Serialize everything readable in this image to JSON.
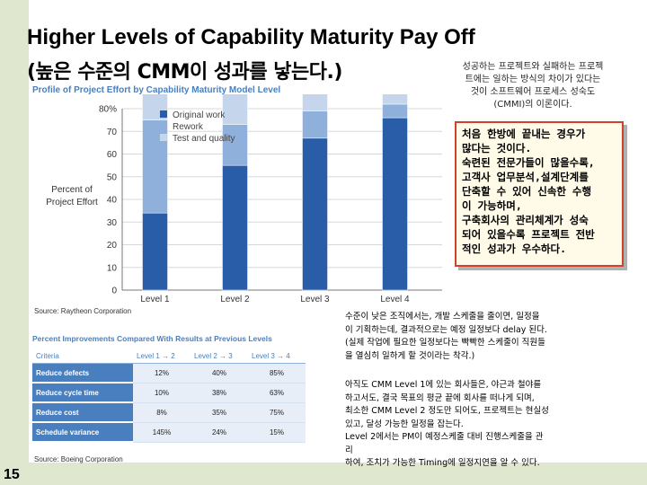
{
  "slide": {
    "title_line1": "Higher Levels of Capability Maturity Pay Off",
    "title_line2": "(높은 수준의 CMM이 성과를 낳는다.)",
    "page_number": "15",
    "note_top": [
      "성공하는 프로젝트와 실패하는 프로젝",
      "트에는 일하는 방식의 차이가 있다는",
      "것이 소프트웨어 프로세스 성숙도",
      "(CMMI)의 이론이다."
    ],
    "callout_lines": [
      "처음 한방에 끝내는 경우가",
      "많다는 것이다.",
      "숙련된 전문가들이 많을수록,",
      "고객사 업무분석,설계단계를",
      "단축할 수 있어 신속한 수행",
      "이 가능하며,",
      "구축회사의 관리체계가 성숙",
      "되어 있을수록 프로젝트 전반",
      "적인 성과가 우수하다."
    ],
    "note1_lines": [
      "수준이 낮은 조직에서는, 개발 스케줄을 줄이면, 일정을",
      "이 기획하는데, 결과적으로는 예정 일정보다 delay 된다.",
      "(실제 작업에 필요한 일정보다는 빡빡한 스케줄이 직원들",
      "을 열심히 일하게 할 것이라는 착각.)"
    ],
    "note2_lines": [
      "아직도 CMM Level 1에 있는 회사들은, 야근과 철야를",
      "하고서도, 결국 목표의 평균 끝에 회사를 떠나게 되며,",
      "최소한 CMM Level 2 정도만 되어도, 프로젝트는 현실성",
      "있고, 달성 가능한 일정을 잡는다.",
      "Level 2에서는 PM이 예정스케줄 대비 진행스케줄을 관",
      "리",
      "하여, 조치가 가능한 Timing에 일정지연을 알 수 있다."
    ]
  },
  "chart_data": {
    "type": "bar",
    "title": "Profile of Project Effort by Capability Maturity Model Level",
    "ylabel": "Percent of Project Effort",
    "ylim": [
      0,
      80
    ],
    "yticks": [
      "0",
      "10",
      "20",
      "30",
      "40",
      "50",
      "60",
      "70",
      "80%"
    ],
    "categories": [
      "Level 1",
      "Level 2",
      "Level 3",
      "Level 4"
    ],
    "series": [
      {
        "name": "Original work",
        "values": [
          34,
          55,
          67,
          76
        ]
      },
      {
        "name": "Rework",
        "values": [
          41,
          18,
          12,
          6
        ]
      },
      {
        "name": "Test and quality",
        "values": [
          25,
          27,
          21,
          18
        ]
      }
    ],
    "source": "Source: Raytheon Corporation",
    "colors": {
      "Original work": "#2a5da8",
      "Rework": "#8fb0da",
      "Test and quality": "#c5d6ec"
    }
  },
  "table": {
    "title": "Percent Improvements Compared With Results at Previous Levels",
    "headers": [
      "Criteria",
      "Level 1 → 2",
      "Level 2 → 3",
      "Level 3 → 4"
    ],
    "rows": [
      {
        "criteria": "Reduce defects",
        "v1": "12%",
        "v2": "40%",
        "v3": "85%"
      },
      {
        "criteria": "Reduce cycle time",
        "v1": "10%",
        "v2": "38%",
        "v3": "63%"
      },
      {
        "criteria": "Reduce cost",
        "v1": "8%",
        "v2": "35%",
        "v3": "75%"
      },
      {
        "criteria": "Schedule variance",
        "v1": "145%",
        "v2": "24%",
        "v3": "15%"
      }
    ],
    "source": "Source: Boeing Corporation"
  }
}
